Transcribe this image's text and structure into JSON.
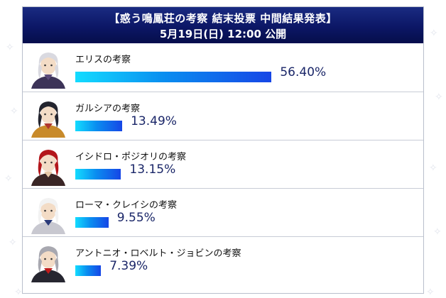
{
  "header": {
    "title": "【惑う鳴鳳荘の考察 結末投票 中間結果発表】",
    "subtitle": "5月19日(日) 12:00 公開"
  },
  "chart_data": {
    "type": "bar",
    "orientation": "horizontal",
    "categories": [
      "エリスの考察",
      "ガルシアの考察",
      "イシドロ・ポジオリの考察",
      "ローマ・クレイシの考察",
      "アントニオ・ロベルト・ジョビンの考察"
    ],
    "values": [
      56.4,
      13.49,
      13.15,
      9.55,
      7.39
    ],
    "value_labels": [
      "56.40%",
      "13.49%",
      "13.15%",
      "9.55%",
      "7.39%"
    ],
    "unit": "%",
    "xlim": [
      0,
      100
    ],
    "title": "【惑う鳴鳳荘の考察 結末投票 中間結果発表】",
    "subtitle": "5月19日(日) 12:00 公開",
    "grid": false,
    "legend": "none"
  },
  "portraits": [
    {
      "icon": "white-haired-woman-portrait-icon",
      "colors": [
        "#d9d9e0",
        "#5a4a7a",
        "#3c3358"
      ]
    },
    {
      "icon": "dark-haired-man-portrait-icon",
      "colors": [
        "#23242e",
        "#b0372e",
        "#c88a2a"
      ]
    },
    {
      "icon": "red-haired-woman-portrait-icon",
      "colors": [
        "#b3161b",
        "#e8c9a8",
        "#3a2626"
      ]
    },
    {
      "icon": "white-hat-man-portrait-icon",
      "colors": [
        "#f2f2f2",
        "#2a3a7a",
        "#c8c8d0"
      ]
    },
    {
      "icon": "silver-haired-man-portrait-icon",
      "colors": [
        "#a8a8b0",
        "#c01b1b",
        "#262630"
      ]
    }
  ],
  "colors": {
    "header_bg": "#0c1766",
    "bar_start": "#13dcff",
    "bar_end": "#1646e6",
    "percent_text": "#1a2668"
  }
}
